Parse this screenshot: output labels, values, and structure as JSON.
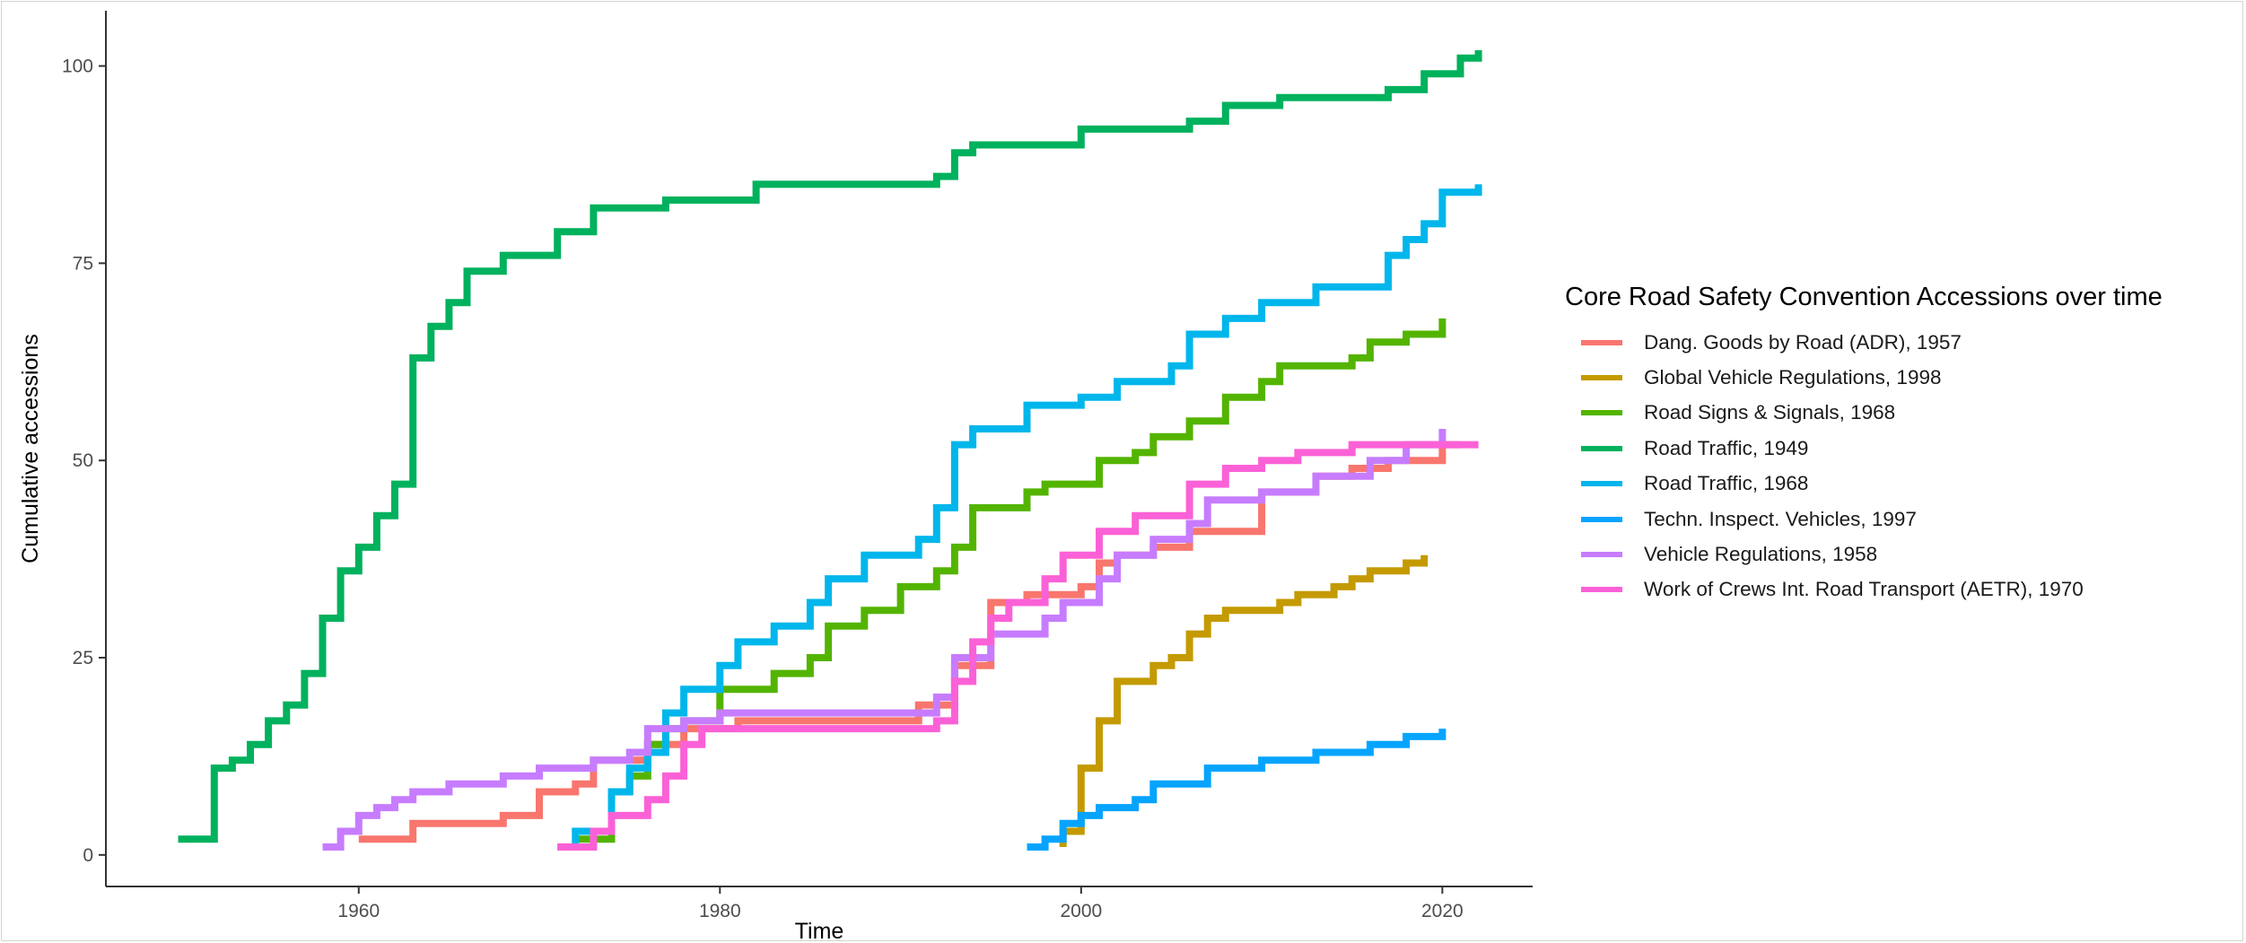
{
  "chart_data": {
    "type": "line",
    "step": true,
    "xlabel": "Time",
    "ylabel": "Cumulative accessions",
    "xlim": [
      1946,
      2025
    ],
    "ylim": [
      -4,
      107
    ],
    "xticks": [
      1960,
      1980,
      2000,
      2020
    ],
    "yticks": [
      0,
      25,
      50,
      75,
      100
    ],
    "grid": false,
    "legend": {
      "title": "Core Road Safety Convention Accessions over time",
      "placement": "right"
    },
    "series": [
      {
        "name": "Dang. Goods by Road (ADR), 1957",
        "color": "#F8766D",
        "points": [
          [
            1960,
            2
          ],
          [
            1963,
            4
          ],
          [
            1968,
            5
          ],
          [
            1970,
            8
          ],
          [
            1972,
            9
          ],
          [
            1973,
            12
          ],
          [
            1976,
            14
          ],
          [
            1978,
            16
          ],
          [
            1981,
            17
          ],
          [
            1991,
            19
          ],
          [
            1993,
            24
          ],
          [
            1995,
            32
          ],
          [
            1997,
            33
          ],
          [
            2000,
            34
          ],
          [
            2001,
            37
          ],
          [
            2002,
            38
          ],
          [
            2004,
            39
          ],
          [
            2006,
            41
          ],
          [
            2010,
            46
          ],
          [
            2013,
            48
          ],
          [
            2015,
            49
          ],
          [
            2017,
            50
          ],
          [
            2020,
            52
          ],
          [
            2021,
            52
          ]
        ]
      },
      {
        "name": "Global Vehicle Regulations, 1998",
        "color": "#C49A00",
        "points": [
          [
            1999,
            1
          ],
          [
            1999,
            3
          ],
          [
            2000,
            11
          ],
          [
            2001,
            17
          ],
          [
            2002,
            22
          ],
          [
            2004,
            24
          ],
          [
            2005,
            25
          ],
          [
            2006,
            28
          ],
          [
            2007,
            30
          ],
          [
            2008,
            31
          ],
          [
            2011,
            32
          ],
          [
            2012,
            33
          ],
          [
            2014,
            34
          ],
          [
            2015,
            35
          ],
          [
            2016,
            36
          ],
          [
            2018,
            37
          ],
          [
            2019,
            38
          ]
        ]
      },
      {
        "name": "Road Signs & Signals, 1968",
        "color": "#53B400",
        "points": [
          [
            1972,
            2
          ],
          [
            1974,
            8
          ],
          [
            1975,
            10
          ],
          [
            1976,
            14
          ],
          [
            1977,
            16
          ],
          [
            1978,
            17
          ],
          [
            1980,
            21
          ],
          [
            1983,
            23
          ],
          [
            1985,
            25
          ],
          [
            1986,
            29
          ],
          [
            1988,
            31
          ],
          [
            1990,
            34
          ],
          [
            1992,
            36
          ],
          [
            1993,
            39
          ],
          [
            1994,
            44
          ],
          [
            1997,
            46
          ],
          [
            1998,
            47
          ],
          [
            2001,
            50
          ],
          [
            2003,
            51
          ],
          [
            2004,
            53
          ],
          [
            2006,
            55
          ],
          [
            2008,
            58
          ],
          [
            2010,
            60
          ],
          [
            2011,
            62
          ],
          [
            2015,
            63
          ],
          [
            2016,
            65
          ],
          [
            2018,
            66
          ],
          [
            2020,
            68
          ]
        ]
      },
      {
        "name": "Road Traffic, 1949",
        "color": "#00B15D",
        "points": [
          [
            1950,
            2
          ],
          [
            1952,
            4
          ],
          [
            1952,
            11
          ],
          [
            1953,
            12
          ],
          [
            1954,
            14
          ],
          [
            1955,
            17
          ],
          [
            1956,
            19
          ],
          [
            1957,
            23
          ],
          [
            1958,
            30
          ],
          [
            1959,
            36
          ],
          [
            1960,
            39
          ],
          [
            1961,
            43
          ],
          [
            1962,
            47
          ],
          [
            1963,
            63
          ],
          [
            1964,
            67
          ],
          [
            1965,
            70
          ],
          [
            1966,
            74
          ],
          [
            1968,
            76
          ],
          [
            1971,
            79
          ],
          [
            1973,
            82
          ],
          [
            1977,
            83
          ],
          [
            1982,
            85
          ],
          [
            1992,
            86
          ],
          [
            1993,
            89
          ],
          [
            1994,
            90
          ],
          [
            2000,
            92
          ],
          [
            2006,
            93
          ],
          [
            2008,
            95
          ],
          [
            2011,
            96
          ],
          [
            2017,
            97
          ],
          [
            2019,
            99
          ],
          [
            2021,
            101
          ],
          [
            2022,
            102
          ]
        ]
      },
      {
        "name": "Road Traffic, 1968",
        "color": "#00B6EB",
        "points": [
          [
            1971,
            1
          ],
          [
            1972,
            3
          ],
          [
            1974,
            8
          ],
          [
            1975,
            11
          ],
          [
            1976,
            13
          ],
          [
            1977,
            18
          ],
          [
            1978,
            21
          ],
          [
            1980,
            24
          ],
          [
            1981,
            27
          ],
          [
            1983,
            29
          ],
          [
            1985,
            32
          ],
          [
            1986,
            35
          ],
          [
            1988,
            38
          ],
          [
            1991,
            40
          ],
          [
            1992,
            44
          ],
          [
            1993,
            52
          ],
          [
            1994,
            54
          ],
          [
            1997,
            57
          ],
          [
            2000,
            58
          ],
          [
            2002,
            60
          ],
          [
            2005,
            62
          ],
          [
            2006,
            66
          ],
          [
            2008,
            68
          ],
          [
            2010,
            70
          ],
          [
            2013,
            72
          ],
          [
            2017,
            76
          ],
          [
            2018,
            78
          ],
          [
            2019,
            80
          ],
          [
            2020,
            84
          ],
          [
            2022,
            85
          ]
        ]
      },
      {
        "name": "Techn. Inspect. Vehicles, 1997",
        "color": "#06A4FF",
        "points": [
          [
            1997,
            1
          ],
          [
            1998,
            2
          ],
          [
            1999,
            4
          ],
          [
            2000,
            5
          ],
          [
            2001,
            6
          ],
          [
            2003,
            7
          ],
          [
            2004,
            9
          ],
          [
            2007,
            11
          ],
          [
            2010,
            12
          ],
          [
            2013,
            13
          ],
          [
            2016,
            14
          ],
          [
            2018,
            15
          ],
          [
            2020,
            16
          ]
        ]
      },
      {
        "name": "Vehicle Regulations, 1958",
        "color": "#C77CFF",
        "points": [
          [
            1958,
            1
          ],
          [
            1959,
            3
          ],
          [
            1960,
            5
          ],
          [
            1961,
            6
          ],
          [
            1962,
            7
          ],
          [
            1963,
            8
          ],
          [
            1965,
            9
          ],
          [
            1968,
            10
          ],
          [
            1970,
            11
          ],
          [
            1973,
            12
          ],
          [
            1975,
            13
          ],
          [
            1976,
            16
          ],
          [
            1978,
            17
          ],
          [
            1980,
            18
          ],
          [
            1992,
            20
          ],
          [
            1993,
            25
          ],
          [
            1995,
            28
          ],
          [
            1998,
            30
          ],
          [
            1999,
            32
          ],
          [
            2001,
            35
          ],
          [
            2002,
            38
          ],
          [
            2004,
            40
          ],
          [
            2006,
            42
          ],
          [
            2007,
            45
          ],
          [
            2010,
            46
          ],
          [
            2013,
            48
          ],
          [
            2016,
            50
          ],
          [
            2018,
            52
          ],
          [
            2020,
            54
          ]
        ]
      },
      {
        "name": "Work of Crews Int. Road Transport (AETR), 1970",
        "color": "#FB61D7",
        "points": [
          [
            1971,
            1
          ],
          [
            1973,
            3
          ],
          [
            1974,
            5
          ],
          [
            1976,
            7
          ],
          [
            1977,
            10
          ],
          [
            1978,
            14
          ],
          [
            1979,
            16
          ],
          [
            1981,
            16
          ],
          [
            1992,
            17
          ],
          [
            1993,
            22
          ],
          [
            1994,
            27
          ],
          [
            1995,
            30
          ],
          [
            1996,
            32
          ],
          [
            1998,
            35
          ],
          [
            1999,
            38
          ],
          [
            2001,
            41
          ],
          [
            2003,
            43
          ],
          [
            2006,
            47
          ],
          [
            2008,
            49
          ],
          [
            2010,
            50
          ],
          [
            2012,
            51
          ],
          [
            2015,
            52
          ],
          [
            2019,
            52
          ],
          [
            2022,
            52
          ]
        ]
      }
    ]
  }
}
